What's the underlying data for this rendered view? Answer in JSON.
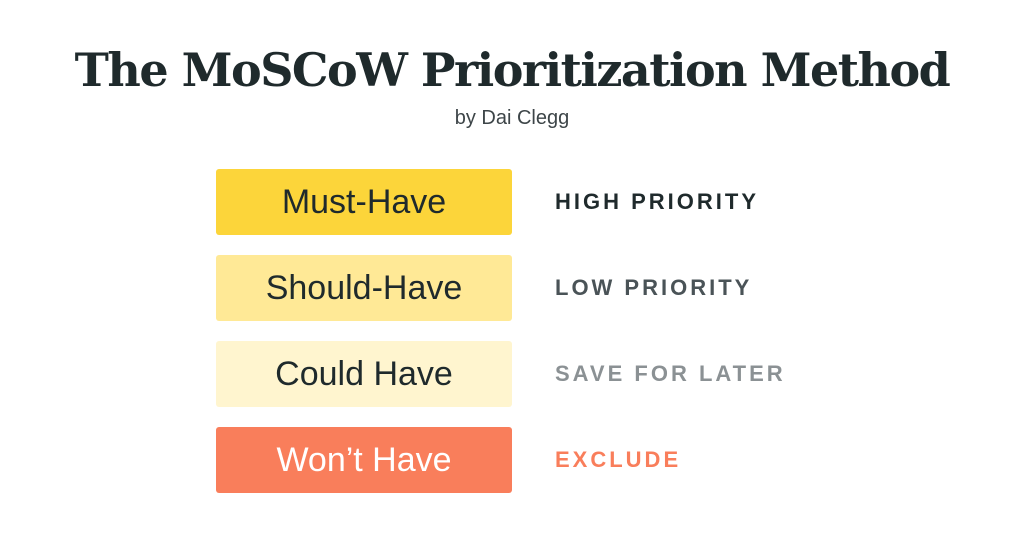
{
  "title": "The MoSCoW Prioritization Method",
  "subtitle": "by Dai Clegg",
  "rows": [
    {
      "label": "Must-Have",
      "priority": "HIGH PRIORITY",
      "bg": "#fcd53a",
      "text_color": "#1f2a2c",
      "priority_color": "#1f2a2c"
    },
    {
      "label": "Should-Have",
      "priority": "LOW PRIORITY",
      "bg": "#ffe996",
      "text_color": "#1f2a2c",
      "priority_color": "#4a5357"
    },
    {
      "label": "Could Have",
      "priority": "SAVE FOR LATER",
      "bg": "#fff5cf",
      "text_color": "#1f2a2c",
      "priority_color": "#8b9194"
    },
    {
      "label": "Won’t Have",
      "priority": "EXCLUDE",
      "bg": "#f97e5b",
      "text_color": "#ffffff",
      "priority_color": "#f97e5b"
    }
  ]
}
